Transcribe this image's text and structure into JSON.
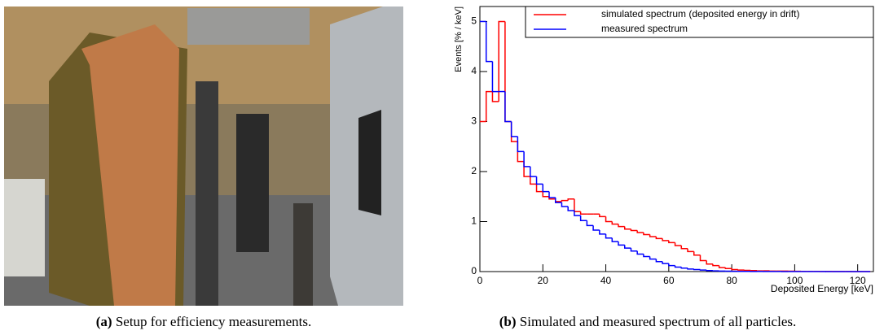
{
  "figure": {
    "subfigures": [
      {
        "label": "(a)",
        "caption": "Setup for efficiency measurements."
      },
      {
        "label": "(b)",
        "caption": "Simulated and measured spectrum of all particles."
      }
    ]
  },
  "chart_data": {
    "type": "histogram",
    "xlabel": "Deposited Energy [keV]",
    "ylabel": "Events [% / keV]",
    "xlim": [
      0,
      125
    ],
    "ylim": [
      0,
      5.3
    ],
    "xticks": [
      0,
      20,
      40,
      60,
      80,
      100,
      120
    ],
    "yticks": [
      0,
      1,
      2,
      3,
      4,
      5
    ],
    "legend": "upper right",
    "bins": [
      0,
      2,
      4,
      6,
      8,
      10,
      12,
      14,
      16,
      18,
      20,
      22,
      24,
      26,
      28,
      30,
      32,
      34,
      36,
      38,
      40,
      42,
      44,
      46,
      48,
      50,
      52,
      54,
      56,
      58,
      60,
      62,
      64,
      66,
      68,
      70,
      72,
      74,
      76,
      78,
      80,
      82,
      84,
      86,
      88,
      90,
      92,
      94,
      96,
      98,
      100,
      102,
      104,
      106,
      108,
      110,
      112,
      114,
      116,
      118,
      120,
      122,
      124
    ],
    "series": [
      {
        "name": "simulated spectrum (deposited energy in drift)",
        "color": "#ff0000",
        "values": [
          3.0,
          3.6,
          3.4,
          5.0,
          3.0,
          2.6,
          2.2,
          1.9,
          1.75,
          1.6,
          1.5,
          1.45,
          1.4,
          1.42,
          1.45,
          1.2,
          1.15,
          1.15,
          1.15,
          1.1,
          1.0,
          0.95,
          0.9,
          0.85,
          0.82,
          0.78,
          0.74,
          0.7,
          0.66,
          0.62,
          0.58,
          0.52,
          0.46,
          0.4,
          0.33,
          0.22,
          0.15,
          0.12,
          0.08,
          0.06,
          0.04,
          0.03,
          0.025,
          0.02,
          0.015,
          0.015,
          0.01,
          0.01,
          0.01,
          0.008,
          0.006,
          0.005,
          0.004,
          0.004,
          0.003,
          0.003,
          0.002,
          0.002,
          0.002,
          0.001,
          0.001,
          0.001
        ]
      },
      {
        "name": "measured spectrum",
        "color": "#0000ff",
        "values": [
          5.0,
          4.2,
          3.6,
          3.6,
          3.0,
          2.7,
          2.4,
          2.1,
          1.9,
          1.75,
          1.6,
          1.48,
          1.38,
          1.3,
          1.22,
          1.12,
          1.02,
          0.92,
          0.83,
          0.75,
          0.67,
          0.6,
          0.53,
          0.47,
          0.41,
          0.35,
          0.3,
          0.25,
          0.2,
          0.16,
          0.12,
          0.09,
          0.07,
          0.05,
          0.04,
          0.03,
          0.02,
          0.015,
          0.01,
          0.008,
          0.006,
          0.005,
          0.004,
          0.003,
          0.003,
          0.002,
          0.002,
          0.002,
          0.001,
          0.001,
          0.001,
          0.001,
          0.001,
          0.001,
          0.001,
          0,
          0,
          0,
          0,
          0,
          0,
          0
        ]
      }
    ]
  }
}
